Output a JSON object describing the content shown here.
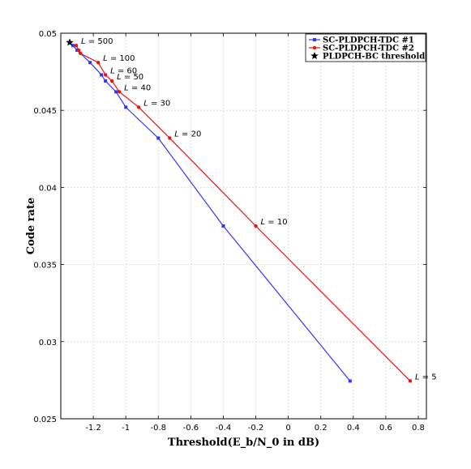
{
  "chart_data": {
    "type": "line",
    "xlabel": "Threshold(E_b/N_0 in dB)",
    "ylabel": "Code rate",
    "xlim": [
      -1.4,
      0.85
    ],
    "ylim": [
      0.025,
      0.05
    ],
    "xticks": [
      "-1.2",
      "-1",
      "-0.8",
      "-0.6",
      "-0.4",
      "-0.2",
      "0",
      "0.2",
      "0.4",
      "0.6",
      "0.8"
    ],
    "yticks": [
      "0.025",
      "0.03",
      "0.035",
      "0.04",
      "0.045",
      "0.05"
    ],
    "grid": true,
    "legend_position": "top-right",
    "series": [
      {
        "name": "SC-PLDPCH-TDC #1",
        "color": "#3333ff",
        "marker": "square",
        "points": [
          [
            0.38,
            0.02745
          ],
          [
            -0.4,
            0.0375
          ],
          [
            -0.8,
            0.0432
          ],
          [
            -1.0,
            0.0452
          ],
          [
            -1.06,
            0.0462
          ],
          [
            -1.125,
            0.0469
          ],
          [
            -1.15,
            0.0473
          ],
          [
            -1.22,
            0.0481
          ],
          [
            -1.3,
            0.0489
          ],
          [
            -1.325,
            0.0492
          ]
        ]
      },
      {
        "name": "SC-PLDPCH-TDC #2",
        "color": "#ee1111",
        "marker": "circle",
        "points": [
          [
            0.75,
            0.02745
          ],
          [
            -0.2,
            0.0375
          ],
          [
            -0.73,
            0.0432
          ],
          [
            -0.92,
            0.0452
          ],
          [
            -1.04,
            0.0462
          ],
          [
            -1.085,
            0.0469
          ],
          [
            -1.125,
            0.0473
          ],
          [
            -1.17,
            0.0481
          ],
          [
            -1.28,
            0.0487
          ],
          [
            -1.29,
            0.0489
          ],
          [
            -1.305,
            0.0492
          ]
        ]
      },
      {
        "name": "PLDPCH-BC threshold",
        "color": "#000000",
        "marker": "star",
        "points": [
          [
            -1.345,
            0.0494
          ]
        ]
      }
    ],
    "annotations": [
      {
        "label": "L",
        "value": "= 5",
        "x": 0.75,
        "y": 0.02745
      },
      {
        "label": "L",
        "value": "= 10",
        "x": -0.2,
        "y": 0.0375
      },
      {
        "label": "L",
        "value": "= 20",
        "x": -0.73,
        "y": 0.0432
      },
      {
        "label": "L",
        "value": "= 30",
        "x": -0.92,
        "y": 0.0452
      },
      {
        "label": "L",
        "value": "= 40",
        "x": -1.04,
        "y": 0.0462
      },
      {
        "label": "L",
        "value": "= 50",
        "x": -1.085,
        "y": 0.0469
      },
      {
        "label": "L",
        "value": "= 60",
        "x": -1.125,
        "y": 0.0473
      },
      {
        "label": "L",
        "value": "= 100",
        "x": -1.17,
        "y": 0.0481
      },
      {
        "label": "L",
        "value": "= 500",
        "x": -1.305,
        "y": 0.0492
      }
    ]
  }
}
